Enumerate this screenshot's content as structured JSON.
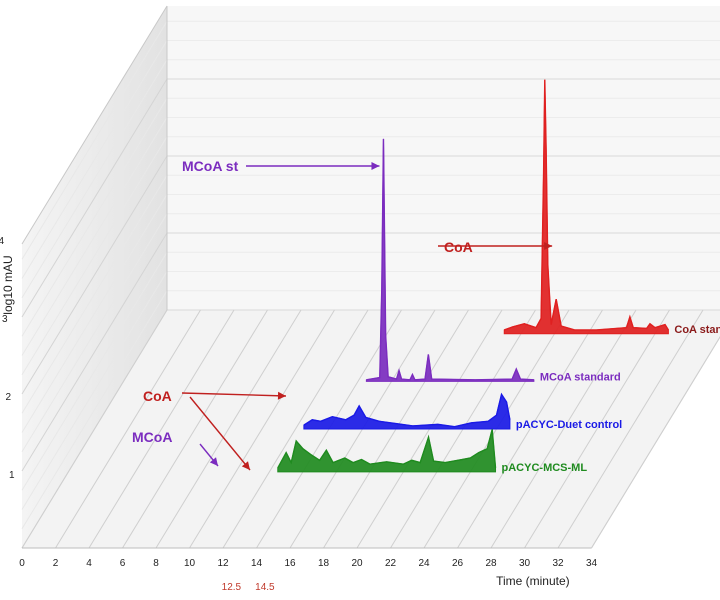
{
  "chart_data": {
    "type": "line",
    "style": "3d-waterfall",
    "xlabel": "Time (minute)",
    "ylabel_left": "log10 mAU",
    "ylabel_back": "log10 mAU",
    "xlim": [
      0,
      34
    ],
    "ylim": [
      0,
      4
    ],
    "x_ticks": [
      0,
      2,
      4,
      6,
      8,
      10,
      12,
      14,
      16,
      18,
      20,
      22,
      24,
      26,
      28,
      30,
      32,
      34
    ],
    "y_ticks": [
      1,
      2,
      3,
      4
    ],
    "x_ticks_highlight": [
      "12.5",
      "14.5"
    ],
    "highlight_color": "#c0392b",
    "series": [
      {
        "name": "CoA standard",
        "color": "#e02020",
        "label_color": "#8b1a1a",
        "points": [
          [
            21.0,
            0.05
          ],
          [
            21.5,
            0.09
          ],
          [
            22.2,
            0.13
          ],
          [
            22.9,
            0.08
          ],
          [
            23.2,
            0.2
          ],
          [
            23.35,
            2.1
          ],
          [
            23.42,
            3.3
          ],
          [
            23.5,
            2.4
          ],
          [
            23.6,
            0.9
          ],
          [
            23.8,
            0.12
          ],
          [
            24.1,
            0.45
          ],
          [
            24.4,
            0.1
          ],
          [
            25.2,
            0.05
          ],
          [
            26.5,
            0.05
          ],
          [
            28.3,
            0.08
          ],
          [
            28.5,
            0.22
          ],
          [
            28.7,
            0.08
          ],
          [
            29.5,
            0.07
          ],
          [
            29.7,
            0.13
          ],
          [
            30.0,
            0.08
          ],
          [
            30.6,
            0.12
          ],
          [
            30.8,
            0.05
          ]
        ]
      },
      {
        "name": "MCoA standard",
        "color": "#7b2cbf",
        "label_color": "#7b2cbf",
        "points": [
          [
            14.5,
            0.02
          ],
          [
            15.3,
            0.05
          ],
          [
            15.42,
            1.2
          ],
          [
            15.52,
            3.15
          ],
          [
            15.65,
            0.6
          ],
          [
            15.8,
            0.06
          ],
          [
            16.3,
            0.03
          ],
          [
            16.45,
            0.14
          ],
          [
            16.6,
            0.03
          ],
          [
            17.1,
            0.02
          ],
          [
            17.25,
            0.09
          ],
          [
            17.4,
            0.02
          ],
          [
            18.0,
            0.03
          ],
          [
            18.2,
            0.35
          ],
          [
            18.4,
            0.03
          ],
          [
            21.0,
            0.02
          ],
          [
            23.2,
            0.03
          ],
          [
            23.45,
            0.16
          ],
          [
            23.7,
            0.03
          ],
          [
            24.5,
            0.02
          ]
        ]
      },
      {
        "name": "pACYC-Duet control",
        "color": "#1a1ae6",
        "label_color": "#1a1ae6",
        "points": [
          [
            12.5,
            0.05
          ],
          [
            13.0,
            0.12
          ],
          [
            13.5,
            0.1
          ],
          [
            14.2,
            0.16
          ],
          [
            15.0,
            0.12
          ],
          [
            15.5,
            0.18
          ],
          [
            15.8,
            0.3
          ],
          [
            16.2,
            0.15
          ],
          [
            17.0,
            0.1
          ],
          [
            18.0,
            0.07
          ],
          [
            19.0,
            0.04
          ],
          [
            20.5,
            0.06
          ],
          [
            21.5,
            0.03
          ],
          [
            22.5,
            0.08
          ],
          [
            23.5,
            0.1
          ],
          [
            24.0,
            0.18
          ],
          [
            24.3,
            0.45
          ],
          [
            24.6,
            0.35
          ],
          [
            24.8,
            0.12
          ]
        ]
      },
      {
        "name": "pACYC-MCS-ML",
        "color": "#1f8b1f",
        "label_color": "#1f8b1f",
        "points": [
          [
            12.5,
            0.05
          ],
          [
            13.0,
            0.25
          ],
          [
            13.3,
            0.12
          ],
          [
            13.6,
            0.4
          ],
          [
            14.0,
            0.3
          ],
          [
            14.5,
            0.22
          ],
          [
            15.0,
            0.15
          ],
          [
            15.4,
            0.28
          ],
          [
            15.8,
            0.12
          ],
          [
            16.5,
            0.18
          ],
          [
            17.0,
            0.12
          ],
          [
            17.5,
            0.16
          ],
          [
            18.0,
            0.1
          ],
          [
            19.0,
            0.13
          ],
          [
            20.0,
            0.1
          ],
          [
            20.5,
            0.15
          ],
          [
            21.0,
            0.12
          ],
          [
            21.5,
            0.45
          ],
          [
            21.8,
            0.14
          ],
          [
            22.5,
            0.12
          ],
          [
            23.5,
            0.16
          ],
          [
            24.0,
            0.18
          ],
          [
            24.5,
            0.25
          ],
          [
            25.0,
            0.3
          ],
          [
            25.3,
            0.55
          ],
          [
            25.5,
            0.05
          ]
        ]
      }
    ],
    "annotations": [
      {
        "text": "MCoA st",
        "color": "#7b2cbf"
      },
      {
        "text": "CoA",
        "color": "#c0201f"
      },
      {
        "text": "CoA",
        "color": "#c0201f"
      },
      {
        "text": "MCoA",
        "color": "#7b2cbf"
      }
    ]
  }
}
